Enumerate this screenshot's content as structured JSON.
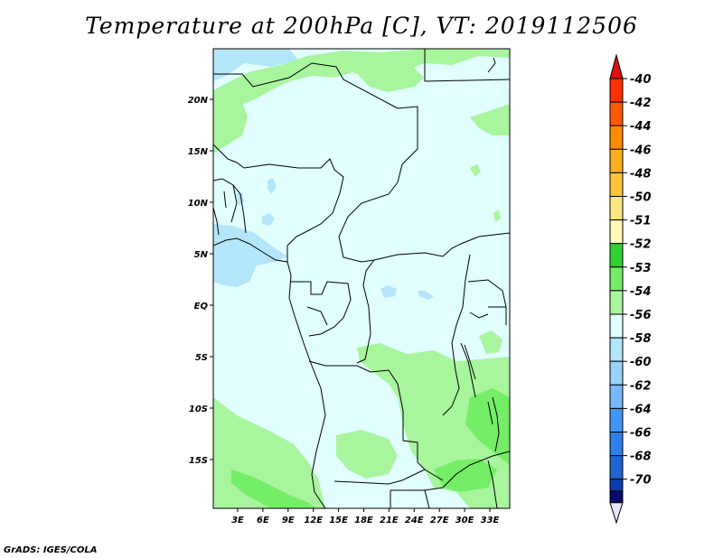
{
  "title": "Temperature at 200hPa [C], VT: 2019112506",
  "credit": "GrADS: IGES/COLA",
  "map": {
    "lat_ticks": [
      {
        "value": 20,
        "label": "20N"
      },
      {
        "value": 15,
        "label": "15N"
      },
      {
        "value": 10,
        "label": "10N"
      },
      {
        "value": 5,
        "label": "5N"
      },
      {
        "value": 0,
        "label": "EQ"
      },
      {
        "value": -5,
        "label": "5S"
      },
      {
        "value": -10,
        "label": "10S"
      },
      {
        "value": -15,
        "label": "15S"
      }
    ],
    "lon_ticks": [
      {
        "value": 3,
        "label": "3E"
      },
      {
        "value": 6,
        "label": "6E"
      },
      {
        "value": 9,
        "label": "9E"
      },
      {
        "value": 12,
        "label": "12E"
      },
      {
        "value": 15,
        "label": "15E"
      },
      {
        "value": 18,
        "label": "18E"
      },
      {
        "value": 21,
        "label": "21E"
      },
      {
        "value": 24,
        "label": "24E"
      },
      {
        "value": 27,
        "label": "27E"
      },
      {
        "value": 30,
        "label": "30E"
      },
      {
        "value": 33,
        "label": "33E"
      }
    ],
    "background_color": "#e0fffe"
  },
  "colorbar": {
    "levels": [
      {
        "label": "-40",
        "color": "#ff2f00"
      },
      {
        "label": "-42",
        "color": "#ff5a00"
      },
      {
        "label": "-44",
        "color": "#ff8c00"
      },
      {
        "label": "-46",
        "color": "#ffae1e"
      },
      {
        "label": "-48",
        "color": "#ffc43c"
      },
      {
        "label": "-50",
        "color": "#ffe680"
      },
      {
        "label": "-51",
        "color": "#fffab5"
      },
      {
        "label": "-52",
        "color": "#32d232"
      },
      {
        "label": "-53",
        "color": "#74ee66"
      },
      {
        "label": "-54",
        "color": "#a8f59e"
      },
      {
        "label": "-56",
        "color": "#e0fffe"
      },
      {
        "label": "-58",
        "color": "#b4e6fb"
      },
      {
        "label": "-60",
        "color": "#96d2fa"
      },
      {
        "label": "-62",
        "color": "#78b9fa"
      },
      {
        "label": "-64",
        "color": "#4196fa"
      },
      {
        "label": "-66",
        "color": "#2d80ea"
      },
      {
        "label": "-68",
        "color": "#1e64d2"
      },
      {
        "label": "-70",
        "color": "#0a3cb4"
      }
    ],
    "top_arrow_color": "#e01010",
    "bottom_segment_color": "#0a0a6e",
    "bottom_arrow_color": "#e6e6f5"
  }
}
